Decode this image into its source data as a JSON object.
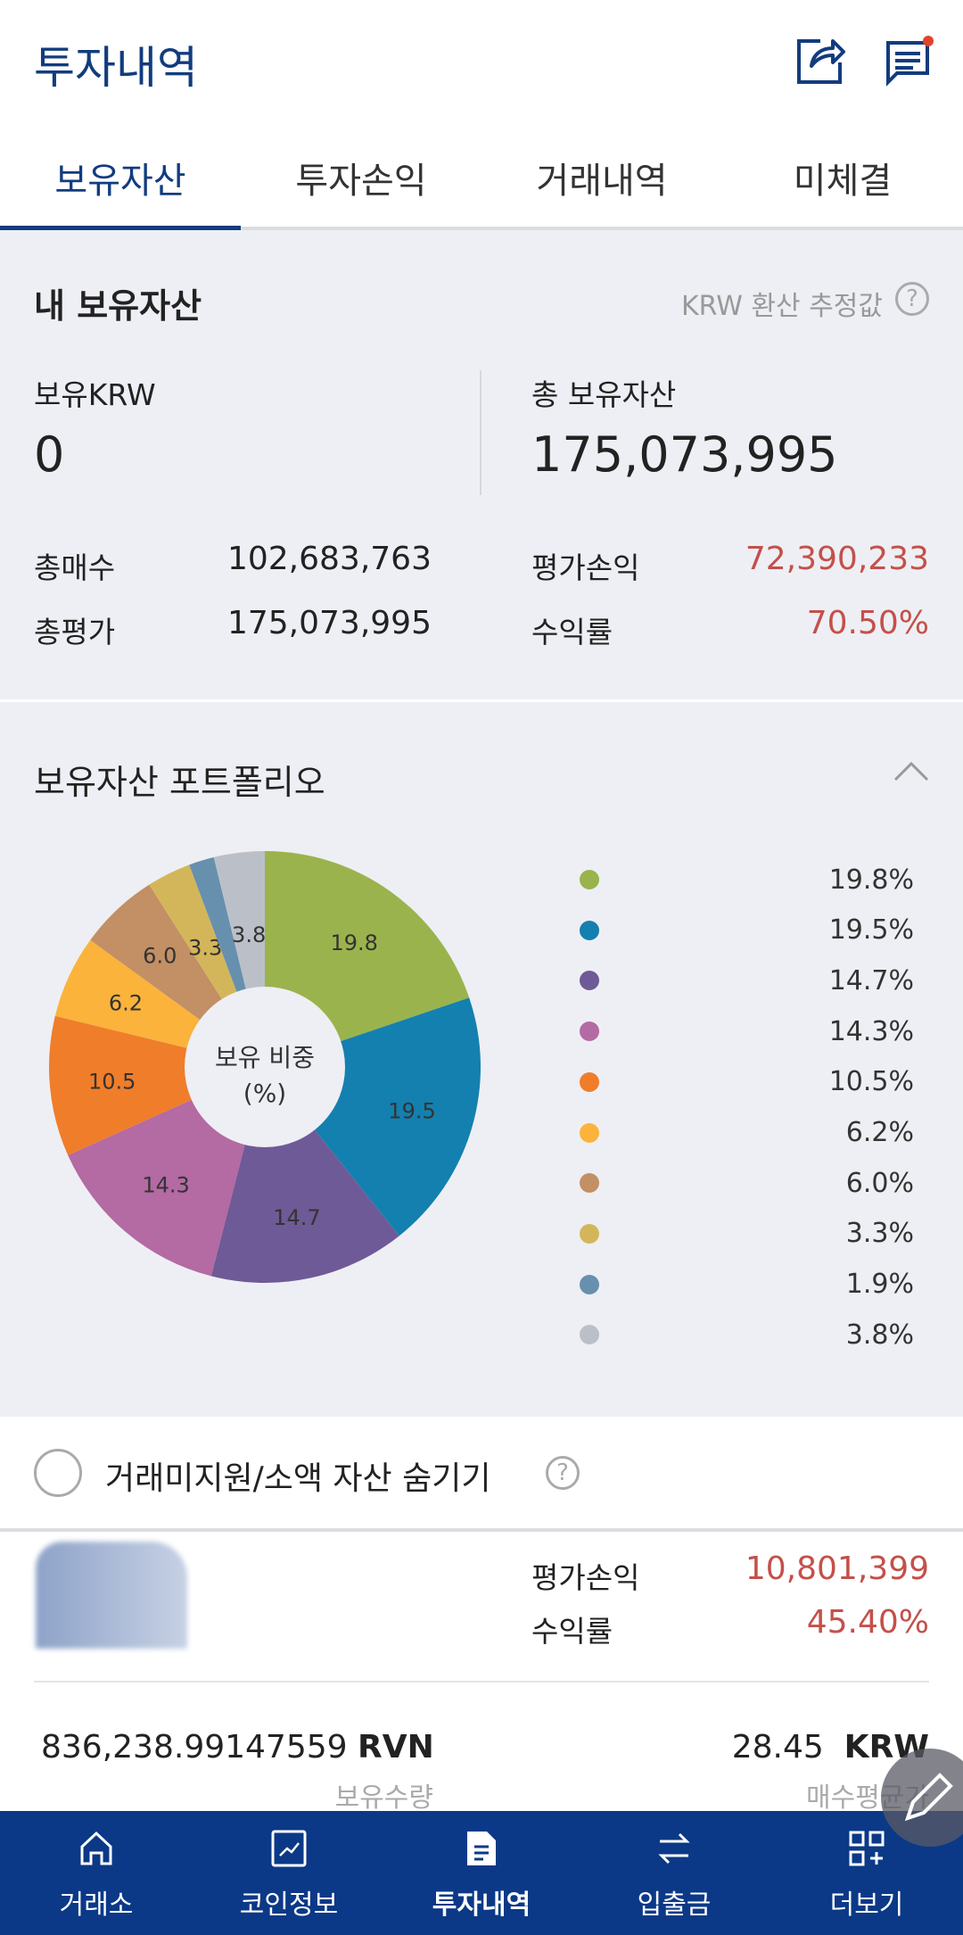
{
  "header": {
    "title": "투자내역",
    "icons": [
      "share-icon",
      "notice-icon"
    ],
    "notice_badge_color": "#e0452b"
  },
  "tabs": [
    {
      "label": "보유자산",
      "active": true
    },
    {
      "label": "투자손익"
    },
    {
      "label": "거래내역"
    },
    {
      "label": "미체결"
    }
  ],
  "summary": {
    "title": "내 보유자산",
    "note": "KRW 환산 추정값",
    "krw_label": "보유KRW",
    "krw_value": "0",
    "total_label": "총 보유자산",
    "total_value": "175,073,995",
    "buy_label": "총매수",
    "buy_value": "102,683,763",
    "eval_label": "총평가",
    "eval_value": "175,073,995",
    "pnl_label": "평가손익",
    "pnl_value": "72,390,233",
    "rate_label": "수익률",
    "rate_value": "70.50%"
  },
  "portfolio": {
    "title": "보유자산 포트폴리오",
    "center_label_1": "보유 비중",
    "center_label_2": "(%)"
  },
  "chart_data": {
    "type": "pie",
    "donut": true,
    "values": [
      19.8,
      19.5,
      14.7,
      14.3,
      10.5,
      6.2,
      6.0,
      3.3,
      1.9,
      3.8
    ],
    "slice_labels": [
      "19.8",
      "19.5",
      "14.7",
      "14.3",
      "10.5",
      "6.2",
      "6.0",
      "3.3",
      "",
      "3.8"
    ],
    "legend_values": [
      "19.8%",
      "19.5%",
      "14.7%",
      "14.3%",
      "10.5%",
      "6.2%",
      "6.0%",
      "3.3%",
      "1.9%",
      "3.8%"
    ],
    "colors": [
      "#9bb34c",
      "#1380b0",
      "#6e5a96",
      "#b46aa3",
      "#f07d2a",
      "#fbb33b",
      "#c38f65",
      "#d4b65a",
      "#6790ae",
      "#bbc0c8"
    ],
    "legend_placement": "right"
  },
  "filter": {
    "label": "거래미지원/소액 자산 숨기기"
  },
  "asset": {
    "pnl_label": "평가손익",
    "pnl_value": "10,801,399",
    "rate_label": "수익률",
    "rate_value": "45.40%",
    "qty_value": "836,238.99147559",
    "qty_unit": "RVN",
    "qty_label": "보유수량",
    "avg_value": "28.45",
    "avg_unit": "KRW",
    "avg_label": "매수평균가"
  },
  "nav": [
    {
      "label": "거래소",
      "icon": "home-icon"
    },
    {
      "label": "코인정보",
      "icon": "chart-icon"
    },
    {
      "label": "투자내역",
      "icon": "document-icon",
      "active": true
    },
    {
      "label": "입출금",
      "icon": "transfer-icon"
    },
    {
      "label": "더보기",
      "icon": "more-grid-icon"
    }
  ]
}
